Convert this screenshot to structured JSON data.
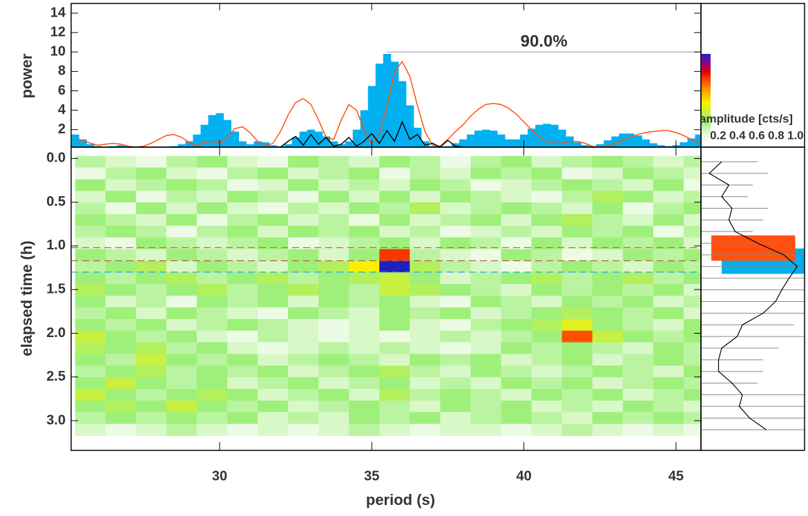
{
  "chart_data": [
    {
      "type": "step",
      "ylabel": "power",
      "xlim": [
        25.12,
        45.82
      ],
      "ylim": [
        0.2,
        15
      ],
      "yticks": [
        2,
        4,
        6,
        8,
        10,
        12,
        14
      ],
      "series": [
        {
          "color": "#00b0f0",
          "fill": true,
          "x": [
            25.25,
            25.5,
            25.75,
            26,
            26.25,
            26.5,
            26.75,
            27,
            27.25,
            27.5,
            27.75,
            28,
            28.25,
            28.5,
            28.75,
            29,
            29.25,
            29.5,
            29.75,
            30,
            30.25,
            30.5,
            30.75,
            31,
            31.25,
            31.5,
            31.75,
            32,
            32.25,
            32.5,
            32.75,
            33,
            33.25,
            33.5,
            33.75,
            34,
            34.25,
            34.5,
            34.75,
            35,
            35.25,
            35.5,
            35.75,
            36,
            36.25,
            36.5,
            36.75,
            37,
            37.25,
            37.5,
            37.75,
            38,
            38.25,
            38.5,
            38.75,
            39,
            39.25,
            39.5,
            39.75,
            40,
            40.25,
            40.5,
            40.75,
            41,
            41.25,
            41.5,
            41.75,
            42,
            42.25,
            42.5,
            42.75,
            43,
            43.25,
            43.5,
            43.75,
            44,
            44.25,
            44.5,
            44.75,
            45,
            45.25,
            45.5,
            45.75
          ],
          "values": [
            1.5,
            1.0,
            0.5,
            0.3,
            0.2,
            0.3,
            0.4,
            0.3,
            0.2,
            0.2,
            0.2,
            0.2,
            0.2,
            0.3,
            0.5,
            0.8,
            1.5,
            2.5,
            3.5,
            3.7,
            3.0,
            1.8,
            0.8,
            0.5,
            0.8,
            0.7,
            0.4,
            0.3,
            0.5,
            1.2,
            1.8,
            2.0,
            1.8,
            1.3,
            0.8,
            0.5,
            0.8,
            2.0,
            4.0,
            6.5,
            8.8,
            9.8,
            9.0,
            7.0,
            4.5,
            2.2,
            0.8,
            0.3,
            0.2,
            0.3,
            0.6,
            1.0,
            1.5,
            1.9,
            2.0,
            1.9,
            1.5,
            1.0,
            1.0,
            1.5,
            2.1,
            2.5,
            2.6,
            2.5,
            2.0,
            1.3,
            0.7,
            0.4,
            0.3,
            0.5,
            0.9,
            1.3,
            1.6,
            1.6,
            1.4,
            1.0,
            0.6,
            0.4,
            0.3,
            0.4,
            0.7,
            1.1,
            1.5
          ]
        },
        {
          "color": "#ff5010",
          "fill": false,
          "x": [
            25.25,
            25.5,
            25.75,
            26,
            26.25,
            26.5,
            26.75,
            27,
            27.25,
            27.5,
            27.75,
            28,
            28.25,
            28.5,
            28.75,
            29,
            29.25,
            29.5,
            29.75,
            30,
            30.25,
            30.5,
            30.75,
            31,
            31.25,
            31.5,
            31.75,
            32,
            32.25,
            32.5,
            32.75,
            33,
            33.25,
            33.5,
            33.75,
            34,
            34.25,
            34.5,
            34.75,
            35,
            35.25,
            35.5,
            35.75,
            36,
            36.25,
            36.5,
            36.75,
            37,
            37.25,
            37.5,
            37.75,
            38,
            38.25,
            38.5,
            38.75,
            39,
            39.25,
            39.5,
            39.75,
            40,
            40.25,
            40.5,
            40.75,
            41,
            41.25,
            41.5,
            41.75,
            42,
            42.25,
            42.5,
            42.75,
            43,
            43.25,
            43.5,
            43.75,
            44,
            44.25,
            44.5,
            44.75,
            45,
            45.25,
            45.5,
            45.75
          ],
          "values": [
            1.0,
            0.9,
            0.6,
            0.4,
            0.5,
            0.6,
            0.5,
            0.3,
            0.2,
            0.3,
            0.6,
            1.0,
            1.4,
            1.5,
            1.2,
            0.7,
            0.4,
            0.7,
            0.8,
            0.6,
            1.2,
            2.1,
            2.3,
            1.7,
            0.8,
            0.3,
            0.6,
            1.8,
            3.5,
            4.8,
            5.2,
            4.6,
            3.0,
            1.2,
            1.0,
            3.0,
            4.6,
            4.0,
            2.0,
            0.5,
            1.5,
            4.5,
            8.0,
            9.0,
            7.5,
            4.5,
            1.8,
            0.4,
            0.3,
            1.0,
            1.8,
            2.5,
            3.4,
            4.1,
            4.6,
            4.7,
            4.6,
            4.2,
            3.6,
            2.8,
            2.0,
            1.3,
            0.8,
            0.6,
            0.6,
            0.8,
            0.8,
            0.6,
            0.3,
            0.2,
            0.3,
            0.6,
            0.9,
            1.2,
            1.5,
            1.7,
            1.8,
            1.9,
            1.9,
            1.7,
            1.4,
            1.0,
            0.7
          ]
        },
        {
          "color": "#000000",
          "fill": false,
          "x": [
            32,
            32.25,
            32.5,
            32.75,
            33,
            33.25,
            33.5,
            33.75,
            34,
            34.25,
            34.5,
            34.75,
            35,
            35.25,
            35.5,
            35.75,
            36,
            36.25,
            36.5,
            36.75,
            37,
            37.25,
            37.5,
            37.75,
            38
          ],
          "values": [
            0.2,
            0.8,
            1.3,
            0.4,
            1.5,
            0.5,
            1.2,
            0.3,
            0.5,
            1.2,
            0.3,
            0.8,
            1.6,
            0.6,
            1.9,
            0.8,
            2.8,
            1.0,
            1.5,
            0.4,
            0.6,
            0.2,
            0.9,
            0.3,
            0.2
          ]
        }
      ],
      "threshold": {
        "label": "90.0%",
        "value": 10,
        "x_start": 35.5
      }
    },
    {
      "type": "heatmap",
      "xlabel": "period (s)",
      "ylabel": "elapsed time (h)",
      "xlim": [
        25.12,
        45.82
      ],
      "ylim": [
        3.34,
        -0.13
      ],
      "xticks": [
        30,
        35,
        40,
        45
      ],
      "yticks": [
        {
          "value": 0,
          "label": "0.0"
        },
        0.5,
        {
          "value": 1,
          "label": "1.0"
        },
        1.5,
        {
          "value": 2,
          "label": "2.0"
        },
        2.5,
        {
          "value": 3,
          "label": "3.0"
        }
      ],
      "period_bins": [
        25.25,
        26.25,
        27.25,
        28.25,
        29.25,
        30.25,
        31.25,
        32.25,
        33.25,
        34.25,
        35.25,
        36.25,
        37.25,
        38.25,
        39.25,
        40.25,
        41.25,
        42.25,
        43.25,
        44.25,
        45.25,
        46.25
      ],
      "time_bins": [
        -0.03,
        0.103,
        0.237,
        0.37,
        0.503,
        0.637,
        0.77,
        0.903,
        1.037,
        1.17,
        1.303,
        1.437,
        1.57,
        1.703,
        1.837,
        1.97,
        2.103,
        2.237,
        2.37,
        2.503,
        2.637,
        2.77,
        2.903,
        3.037,
        3.17
      ],
      "values": [
        [
          0.25,
          0.2,
          0.15,
          0.25,
          0.3,
          0.2,
          0.15,
          0.3,
          0.25,
          0.2,
          0.3,
          0.25,
          0.15,
          0.25,
          0.3,
          0.2,
          0.25,
          0.3,
          0.25,
          0.2,
          0.25
        ],
        [
          0.15,
          0.25,
          0.3,
          0.2,
          0.15,
          0.25,
          0.3,
          0.2,
          0.25,
          0.3,
          0.15,
          0.25,
          0.2,
          0.3,
          0.25,
          0.3,
          0.15,
          0.2,
          0.3,
          0.25,
          0.2
        ],
        [
          0.3,
          0.2,
          0.25,
          0.3,
          0.25,
          0.15,
          0.2,
          0.3,
          0.2,
          0.25,
          0.2,
          0.3,
          0.25,
          0.15,
          0.2,
          0.25,
          0.3,
          0.25,
          0.2,
          0.3,
          0.15
        ],
        [
          0.2,
          0.3,
          0.15,
          0.25,
          0.2,
          0.3,
          0.25,
          0.15,
          0.3,
          0.2,
          0.3,
          0.2,
          0.3,
          0.25,
          0.2,
          0.15,
          0.25,
          0.35,
          0.3,
          0.2,
          0.25
        ],
        [
          0.25,
          0.15,
          0.3,
          0.2,
          0.3,
          0.2,
          0.15,
          0.25,
          0.2,
          0.3,
          0.25,
          0.35,
          0.2,
          0.25,
          0.3,
          0.25,
          0.2,
          0.3,
          0.15,
          0.25,
          0.3
        ],
        [
          0.3,
          0.25,
          0.2,
          0.3,
          0.15,
          0.25,
          0.3,
          0.2,
          0.25,
          0.15,
          0.3,
          0.2,
          0.25,
          0.3,
          0.2,
          0.3,
          0.35,
          0.25,
          0.2,
          0.3,
          0.2
        ],
        [
          0.25,
          0.3,
          0.25,
          0.15,
          0.25,
          0.3,
          0.2,
          0.3,
          0.25,
          0.3,
          0.2,
          0.25,
          0.15,
          0.2,
          0.25,
          0.2,
          0.3,
          0.25,
          0.3,
          0.15,
          0.25
        ],
        [
          0.2,
          0.15,
          0.3,
          0.25,
          0.2,
          0.25,
          0.3,
          0.15,
          0.2,
          0.25,
          0.3,
          0.2,
          0.3,
          0.25,
          0.15,
          0.3,
          0.2,
          0.3,
          0.25,
          0.3,
          0.2
        ],
        [
          0.3,
          0.25,
          0.2,
          0.3,
          0.25,
          0.2,
          0.25,
          0.3,
          0.2,
          0.3,
          0.75,
          0.25,
          0.2,
          0.15,
          0.3,
          0.25,
          0.15,
          0.2,
          0.3,
          0.25,
          0.3
        ],
        [
          0.25,
          0.3,
          0.35,
          0.2,
          0.3,
          0.25,
          0.2,
          0.3,
          0.35,
          0.5,
          1.0,
          0.35,
          0.25,
          0.2,
          0.15,
          0.25,
          0.3,
          0.25,
          0.2,
          0.3,
          0.25
        ],
        [
          0.3,
          0.25,
          0.3,
          0.35,
          0.25,
          0.3,
          0.35,
          0.25,
          0.3,
          0.35,
          0.4,
          0.3,
          0.2,
          0.25,
          0.3,
          0.35,
          0.25,
          0.3,
          0.35,
          0.25,
          0.3
        ],
        [
          0.35,
          0.3,
          0.25,
          0.3,
          0.35,
          0.25,
          0.3,
          0.35,
          0.3,
          0.25,
          0.4,
          0.35,
          0.3,
          0.25,
          0.2,
          0.3,
          0.25,
          0.3,
          0.25,
          0.3,
          0.2
        ],
        [
          0.3,
          0.2,
          0.25,
          0.15,
          0.3,
          0.25,
          0.3,
          0.2,
          0.3,
          0.25,
          0.3,
          0.2,
          0.15,
          0.3,
          0.25,
          0.2,
          0.3,
          0.25,
          0.3,
          0.2,
          0.25
        ],
        [
          0.25,
          0.3,
          0.2,
          0.3,
          0.25,
          0.2,
          0.15,
          0.3,
          0.25,
          0.2,
          0.3,
          0.25,
          0.3,
          0.2,
          0.25,
          0.3,
          0.35,
          0.3,
          0.25,
          0.3,
          0.2
        ],
        [
          0.3,
          0.25,
          0.3,
          0.2,
          0.25,
          0.3,
          0.25,
          0.2,
          0.15,
          0.2,
          0.3,
          0.2,
          0.15,
          0.25,
          0.3,
          0.35,
          0.45,
          0.3,
          0.25,
          0.2,
          0.3
        ],
        [
          0.4,
          0.3,
          0.25,
          0.3,
          0.2,
          0.15,
          0.25,
          0.2,
          0.15,
          0.2,
          0.15,
          0.2,
          0.25,
          0.2,
          0.25,
          0.3,
          0.72,
          0.4,
          0.3,
          0.25,
          0.3
        ],
        [
          0.35,
          0.3,
          0.35,
          0.25,
          0.3,
          0.2,
          0.15,
          0.2,
          0.25,
          0.2,
          0.25,
          0.2,
          0.15,
          0.2,
          0.3,
          0.25,
          0.3,
          0.25,
          0.2,
          0.3,
          0.25
        ],
        [
          0.3,
          0.25,
          0.4,
          0.3,
          0.25,
          0.3,
          0.2,
          0.25,
          0.3,
          0.25,
          0.2,
          0.3,
          0.25,
          0.3,
          0.2,
          0.25,
          0.3,
          0.2,
          0.25,
          0.3,
          0.25
        ],
        [
          0.25,
          0.3,
          0.35,
          0.25,
          0.3,
          0.25,
          0.3,
          0.2,
          0.25,
          0.3,
          0.35,
          0.25,
          0.2,
          0.3,
          0.25,
          0.2,
          0.25,
          0.3,
          0.25,
          0.2,
          0.3
        ],
        [
          0.3,
          0.4,
          0.3,
          0.25,
          0.3,
          0.2,
          0.25,
          0.3,
          0.2,
          0.25,
          0.3,
          0.2,
          0.25,
          0.2,
          0.3,
          0.25,
          0.3,
          0.2,
          0.25,
          0.3,
          0.25
        ],
        [
          0.4,
          0.3,
          0.25,
          0.3,
          0.35,
          0.3,
          0.2,
          0.25,
          0.3,
          0.2,
          0.35,
          0.25,
          0.3,
          0.25,
          0.2,
          0.3,
          0.25,
          0.3,
          0.2,
          0.25,
          0.3
        ],
        [
          0.3,
          0.35,
          0.3,
          0.4,
          0.3,
          0.25,
          0.3,
          0.2,
          0.25,
          0.3,
          0.25,
          0.2,
          0.3,
          0.25,
          0.3,
          0.2,
          0.25,
          0.2,
          0.3,
          0.25,
          0.2
        ],
        [
          0.25,
          0.3,
          0.25,
          0.3,
          0.25,
          0.3,
          0.2,
          0.25,
          0.2,
          0.3,
          0.25,
          0.3,
          0.2,
          0.25,
          0.3,
          0.25,
          0.2,
          0.3,
          0.25,
          0.3,
          0.25
        ],
        [
          0.2,
          0.15,
          0.2,
          0.25,
          0.2,
          0.15,
          0.2,
          0.15,
          0.2,
          0.25,
          0.2,
          0.15,
          0.2,
          0.2,
          0.15,
          0.2,
          0.25,
          0.2,
          0.15,
          0.2,
          0.15
        ]
      ],
      "hlines": [
        {
          "value": 1.02,
          "color": "#ff5010"
        },
        {
          "value": 1.17,
          "color": "#b06050"
        },
        {
          "value": 1.3,
          "color": "#10a0f0"
        }
      ]
    },
    {
      "type": "colorbar",
      "label": "amplitude [cts/s]",
      "clim": [
        0.1,
        1.0
      ],
      "ticks": [
        0.2,
        0.4,
        0.6,
        0.8,
        {
          "value": 1,
          "label": "1.0"
        }
      ],
      "colormap": [
        {
          "value": 0.1,
          "color": "#ffffff"
        },
        {
          "value": 0.2,
          "color": "#d8f8c8"
        },
        {
          "value": 0.3,
          "color": "#9ef07a"
        },
        {
          "value": 0.4,
          "color": "#c8f040"
        },
        {
          "value": 0.5,
          "color": "#f8f000"
        },
        {
          "value": 0.62,
          "color": "#ffa000"
        },
        {
          "value": 0.72,
          "color": "#ff5000"
        },
        {
          "value": 0.82,
          "color": "#e00000"
        },
        {
          "value": 0.9,
          "color": "#900090"
        },
        {
          "value": 1.0,
          "color": "#2020c0"
        }
      ]
    },
    {
      "type": "profile",
      "xlim": [
        0,
        1
      ],
      "series": [
        {
          "color": "#888888",
          "values": [
            0.55,
            0.65,
            0.5,
            0.45,
            0.65,
            0.6,
            0.5,
            0.7,
            1,
            1,
            1,
            1,
            1,
            1,
            0.9,
            1,
            0.75,
            0.6,
            0.6,
            0.55,
            1,
            1,
            1,
            1
          ]
        },
        {
          "color": "#000000",
          "values": [
            0.2,
            0.08,
            0.27,
            0.2,
            0.3,
            0.27,
            0.33,
            0.55,
            0.8,
            0.93,
            0.85,
            0.78,
            0.72,
            0.6,
            0.4,
            0.35,
            0.2,
            0.17,
            0.17,
            0.3,
            0.4,
            0.37,
            0.47,
            0.63
          ]
        }
      ],
      "bars": [
        {
          "color": "#00b0f0",
          "start": 1.03,
          "end": 1.32,
          "low": 0.2,
          "high": 1.0
        },
        {
          "color": "#ff5010",
          "start": 0.88,
          "end": 1.17,
          "low": 0.1,
          "high": 0.91
        }
      ]
    }
  ]
}
